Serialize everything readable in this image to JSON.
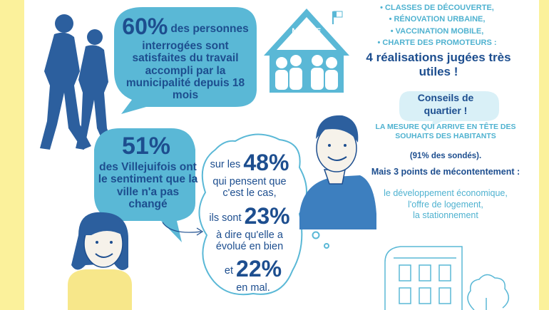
{
  "stat1": {
    "value": "60%",
    "text": "des personnes interrogées sont satisfaites du travail accompli par la municipalité depuis 18 mois"
  },
  "stat2": {
    "value": "51%",
    "text": "des Villejuifois ont le sentiment que la ville n'a pas changé"
  },
  "cloud": {
    "line1_pre": "sur les",
    "line1_value": "48%",
    "line1_post": "qui pensent que c'est le cas,",
    "line2_pre": "ils sont",
    "line2_value": "23%",
    "line2_post": "à dire qu'elle a évolué en bien",
    "line3_pre": "et",
    "line3_value": "22%",
    "line3_post": "en mal."
  },
  "mairie_label": "MAIRIE",
  "realisations": {
    "items": [
      "CLASSES DE DÉCOUVERTE,",
      "RÉNOVATION URBAINE,",
      "VACCINATION MOBILE,",
      "CHARTE DES PROMOTEURS :"
    ],
    "headline": "4 réalisations jugées très utiles !"
  },
  "conseils": {
    "title": "Conseils de quartier !",
    "mesure": "LA MESURE QUI ARRIVE EN TÊTE DES SOUHAITS DES HABITANTS",
    "sondes": "(91% des sondés).",
    "mais": "Mais 3 points de mécontentement :",
    "points": [
      "le développement économique,",
      "l'offre de logement,",
      "la stationnement"
    ]
  },
  "colors": {
    "navy": "#1d4e8f",
    "light_blue": "#4fb2d0",
    "bubble_blue": "#5ab8d6",
    "yellow": "#fbf19b",
    "silhouette": "#2c5f9e"
  }
}
